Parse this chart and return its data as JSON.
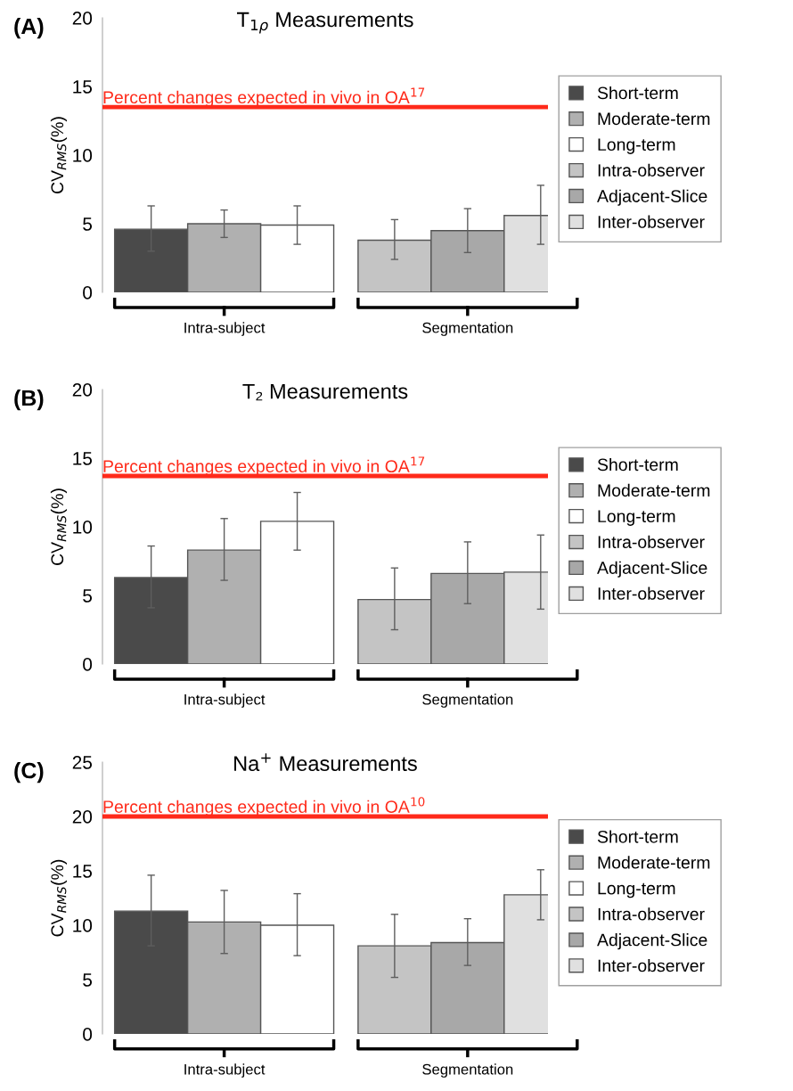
{
  "chart_data": [
    {
      "type": "bar",
      "title": "T$_{1ρ}$ Measurements",
      "ylabel": "CV$_{RMS}$(%)",
      "annotations": [
        "(A)"
      ],
      "categories": [
        "Intra-subject",
        "Segmentation"
      ],
      "series": [
        {
          "name": "Short-term",
          "color": "#4a4a4a",
          "values": [
            4.6,
            null
          ],
          "errors": [
            [
              3.0,
              6.3
            ],
            null
          ]
        },
        {
          "name": "Moderate-term",
          "color": "#b0b0b0",
          "values": [
            5.0,
            null
          ],
          "errors": [
            [
              4.0,
              6.0
            ],
            null
          ]
        },
        {
          "name": "Long-term",
          "color": "#ffffff",
          "values": [
            4.9,
            null
          ],
          "errors": [
            [
              3.5,
              6.3
            ],
            null
          ]
        },
        {
          "name": "Intra-observer",
          "color": "#c4c4c4",
          "values": [
            null,
            3.8
          ],
          "errors": [
            null,
            [
              2.4,
              5.3
            ]
          ]
        },
        {
          "name": "Adjacent-Slice",
          "color": "#a8a8a8",
          "values": [
            null,
            4.5
          ],
          "errors": [
            null,
            [
              2.9,
              6.1
            ]
          ]
        },
        {
          "name": "Inter-observer",
          "color": "#e0e0e0",
          "values": [
            null,
            5.6
          ],
          "errors": [
            null,
            [
              3.5,
              7.8
            ]
          ]
        }
      ],
      "ylim": [
        0,
        20
      ],
      "yticks": [
        0,
        5,
        10,
        15,
        20
      ],
      "legend": "right",
      "grid": false,
      "ref_lines": [
        {
          "axis": "y",
          "value": 13.5,
          "label": "Percent changes expected in vivo in OA$^{17}$",
          "color": "#ff2a1a"
        }
      ]
    },
    {
      "type": "bar",
      "title": "T₂ Measurements",
      "ylabel": "CV$_{RMS}$(%)",
      "annotations": [
        "(B)"
      ],
      "categories": [
        "Intra-subject",
        "Segmentation"
      ],
      "series": [
        {
          "name": "Short-term",
          "color": "#4a4a4a",
          "values": [
            6.3,
            null
          ],
          "errors": [
            [
              4.1,
              8.6
            ],
            null
          ]
        },
        {
          "name": "Moderate-term",
          "color": "#b0b0b0",
          "values": [
            8.3,
            null
          ],
          "errors": [
            [
              6.1,
              10.6
            ],
            null
          ]
        },
        {
          "name": "Long-term",
          "color": "#ffffff",
          "values": [
            10.4,
            null
          ],
          "errors": [
            [
              8.3,
              12.5
            ],
            null
          ]
        },
        {
          "name": "Intra-observer",
          "color": "#c4c4c4",
          "values": [
            null,
            4.7
          ],
          "errors": [
            null,
            [
              2.5,
              7.0
            ]
          ]
        },
        {
          "name": "Adjacent-Slice",
          "color": "#a8a8a8",
          "values": [
            null,
            6.6
          ],
          "errors": [
            null,
            [
              4.4,
              8.9
            ]
          ]
        },
        {
          "name": "Inter-observer",
          "color": "#e0e0e0",
          "values": [
            null,
            6.7
          ],
          "errors": [
            null,
            [
              4.0,
              9.4
            ]
          ]
        }
      ],
      "ylim": [
        0,
        20
      ],
      "yticks": [
        0,
        5,
        10,
        15,
        20
      ],
      "legend": "right",
      "grid": false,
      "ref_lines": [
        {
          "axis": "y",
          "value": 13.7,
          "label": "Percent changes expected in vivo in OA$^{17}$",
          "color": "#ff2a1a"
        }
      ]
    },
    {
      "type": "bar",
      "title": "Na$^{+}$ Measurements",
      "ylabel": "CV$_{RMS}$(%)",
      "annotations": [
        "(C)"
      ],
      "categories": [
        "Intra-subject",
        "Segmentation"
      ],
      "series": [
        {
          "name": "Short-term",
          "color": "#4a4a4a",
          "values": [
            11.3,
            null
          ],
          "errors": [
            [
              8.1,
              14.6
            ],
            null
          ]
        },
        {
          "name": "Moderate-term",
          "color": "#b0b0b0",
          "values": [
            10.3,
            null
          ],
          "errors": [
            [
              7.4,
              13.2
            ],
            null
          ]
        },
        {
          "name": "Long-term",
          "color": "#ffffff",
          "values": [
            10.0,
            null
          ],
          "errors": [
            [
              7.2,
              12.9
            ],
            null
          ]
        },
        {
          "name": "Intra-observer",
          "color": "#c4c4c4",
          "values": [
            null,
            8.1
          ],
          "errors": [
            null,
            [
              5.2,
              11.0
            ]
          ]
        },
        {
          "name": "Adjacent-Slice",
          "color": "#a8a8a8",
          "values": [
            null,
            8.4
          ],
          "errors": [
            null,
            [
              6.3,
              10.6
            ]
          ]
        },
        {
          "name": "Inter-observer",
          "color": "#e0e0e0",
          "values": [
            null,
            12.8
          ],
          "errors": [
            null,
            [
              10.5,
              15.1
            ]
          ]
        }
      ],
      "ylim": [
        0,
        25
      ],
      "yticks": [
        0,
        5,
        10,
        15,
        20,
        25
      ],
      "legend": "right",
      "grid": false,
      "ref_lines": [
        {
          "axis": "y",
          "value": 20,
          "label": "Percent changes expected in vivo in OA$^{10}$",
          "color": "#ff2a1a"
        }
      ]
    }
  ]
}
